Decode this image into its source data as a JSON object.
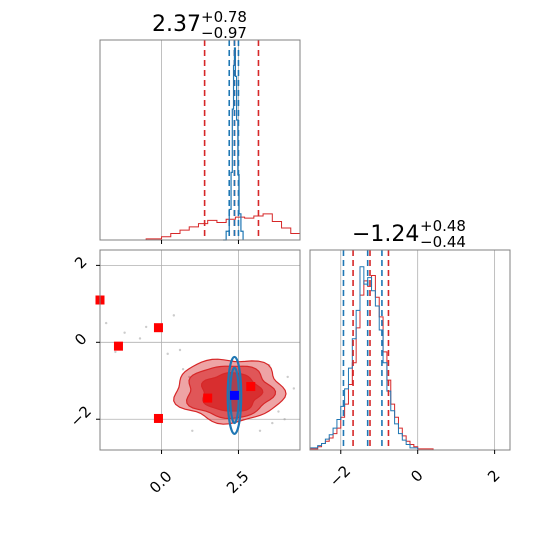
{
  "chart_data": {
    "type": "corner",
    "titles": {
      "p1": {
        "value": "2.37",
        "sup": "+0.78",
        "sub": "−0.97"
      },
      "p2": {
        "value": "−1.24",
        "sup": "+0.48",
        "sub": "−0.44"
      }
    },
    "x_ticks_p1": {
      "values": [
        0.0,
        2.5
      ],
      "labels": [
        "0.0",
        "2.5"
      ]
    },
    "y_ticks_p2": {
      "values": [
        2,
        0,
        -2
      ],
      "labels": [
        "2",
        "0",
        "−2"
      ]
    },
    "x_ticks_p2": {
      "values": [
        -2,
        0,
        2
      ],
      "labels": [
        "−2",
        "0",
        "2"
      ]
    },
    "p1_range": [
      -2.0,
      4.5
    ],
    "p2_range": [
      -2.8,
      2.4
    ],
    "colors": {
      "red": "#d62728",
      "blue": "#1f77b4",
      "grid": "#b0b0b0"
    },
    "series": [
      {
        "name": "",
        "color": "#d62728",
        "p1_quantiles": [
          1.4,
          2.37,
          3.15
        ],
        "p2_quantiles": [
          -1.68,
          -1.24,
          -0.76
        ]
      },
      {
        "name": "",
        "color": "#1f77b4",
        "p1_quantiles": [
          2.2,
          2.37,
          2.5
        ],
        "p2_quantiles": [
          -1.93,
          -1.3,
          -0.93
        ]
      }
    ],
    "red_square_markers": [
      {
        "p1": -2.0,
        "p2": 1.1
      },
      {
        "p1": -1.4,
        "p2": -0.1
      },
      {
        "p1": -0.1,
        "p2": 0.38
      },
      {
        "p1": -0.1,
        "p2": -1.98
      },
      {
        "p1": 1.5,
        "p2": -1.45
      },
      {
        "p1": 2.9,
        "p2": -1.15
      }
    ],
    "blue_square_marker": {
      "p1": 2.37,
      "p2": -1.38
    },
    "p1_hist_red": [
      [
        -2.0,
        0
      ],
      [
        -0.5,
        1
      ],
      [
        0.0,
        3
      ],
      [
        0.3,
        6
      ],
      [
        0.6,
        9
      ],
      [
        0.9,
        12
      ],
      [
        1.2,
        15
      ],
      [
        1.5,
        18
      ],
      [
        1.8,
        16
      ],
      [
        2.1,
        19
      ],
      [
        2.4,
        21
      ],
      [
        2.7,
        20
      ],
      [
        3.0,
        22
      ],
      [
        3.3,
        24
      ],
      [
        3.6,
        17
      ],
      [
        3.9,
        11
      ],
      [
        4.2,
        6
      ],
      [
        4.5,
        3
      ]
    ],
    "p1_hist_blue": [
      [
        2.0,
        0
      ],
      [
        2.1,
        8
      ],
      [
        2.2,
        28
      ],
      [
        2.26,
        62
      ],
      [
        2.3,
        120
      ],
      [
        2.34,
        160
      ],
      [
        2.37,
        176
      ],
      [
        2.4,
        150
      ],
      [
        2.44,
        110
      ],
      [
        2.48,
        60
      ],
      [
        2.52,
        24
      ],
      [
        2.58,
        8
      ],
      [
        2.65,
        0
      ]
    ],
    "p2_hist_red": [
      [
        -2.8,
        1
      ],
      [
        -2.6,
        3
      ],
      [
        -2.5,
        6
      ],
      [
        -2.4,
        8
      ],
      [
        -2.3,
        11
      ],
      [
        -2.2,
        15
      ],
      [
        -2.1,
        20
      ],
      [
        -2.0,
        30
      ],
      [
        -1.9,
        42
      ],
      [
        -1.8,
        60
      ],
      [
        -1.7,
        80
      ],
      [
        -1.6,
        112
      ],
      [
        -1.5,
        142
      ],
      [
        -1.4,
        155
      ],
      [
        -1.3,
        150
      ],
      [
        -1.2,
        160
      ],
      [
        -1.1,
        140
      ],
      [
        -1.0,
        122
      ],
      [
        -0.9,
        90
      ],
      [
        -0.8,
        64
      ],
      [
        -0.7,
        42
      ],
      [
        -0.6,
        30
      ],
      [
        -0.5,
        20
      ],
      [
        -0.4,
        13
      ],
      [
        -0.3,
        8
      ],
      [
        -0.2,
        5
      ],
      [
        -0.1,
        3
      ],
      [
        0.0,
        1
      ],
      [
        0.2,
        1
      ],
      [
        0.4,
        0
      ]
    ],
    "p2_hist_blue": [
      [
        -2.8,
        2
      ],
      [
        -2.6,
        4
      ],
      [
        -2.5,
        6
      ],
      [
        -2.4,
        10
      ],
      [
        -2.3,
        14
      ],
      [
        -2.2,
        20
      ],
      [
        -2.1,
        28
      ],
      [
        -2.0,
        40
      ],
      [
        -1.9,
        56
      ],
      [
        -1.8,
        75
      ],
      [
        -1.7,
        102
      ],
      [
        -1.6,
        128
      ],
      [
        -1.5,
        168
      ],
      [
        -1.4,
        152
      ],
      [
        -1.3,
        158
      ],
      [
        -1.2,
        146
      ],
      [
        -1.1,
        132
      ],
      [
        -1.0,
        110
      ],
      [
        -0.9,
        80
      ],
      [
        -0.8,
        54
      ],
      [
        -0.7,
        36
      ],
      [
        -0.6,
        24
      ],
      [
        -0.5,
        15
      ],
      [
        -0.4,
        9
      ],
      [
        -0.3,
        5
      ],
      [
        -0.2,
        2
      ],
      [
        0.0,
        0
      ]
    ],
    "red_contours": [
      {
        "cx": 2.2,
        "cy": -1.25,
        "rx": 1.75,
        "ry": 0.82,
        "fill": 0.42
      },
      {
        "cx": 2.2,
        "cy": -1.28,
        "rx": 1.38,
        "ry": 0.68,
        "fill": 0.62
      },
      {
        "cx": 2.25,
        "cy": -1.3,
        "rx": 0.95,
        "ry": 0.5,
        "fill": 0.85
      }
    ],
    "blue_contours": [
      {
        "cx": 2.37,
        "cy": -1.38,
        "rx": 0.22,
        "ry": 1.0
      },
      {
        "cx": 2.37,
        "cy": -1.38,
        "rx": 0.14,
        "ry": 0.72
      }
    ],
    "scatter_points_p1": [
      -1.8,
      -1.2,
      -0.7,
      0.2,
      0.6,
      0.9,
      3.5,
      3.8,
      4.0,
      4.3,
      -0.5,
      -1.5,
      0.4,
      3.2,
      4.1,
      1.0,
      0.7,
      3.6
    ],
    "scatter_points_p2": [
      0.5,
      0.25,
      0.1,
      -0.3,
      -0.2,
      -0.9,
      -0.6,
      -1.8,
      -2.0,
      -1.2,
      0.4,
      -0.25,
      0.7,
      -2.3,
      -0.9,
      -2.3,
      -0.7,
      -2.1
    ]
  }
}
